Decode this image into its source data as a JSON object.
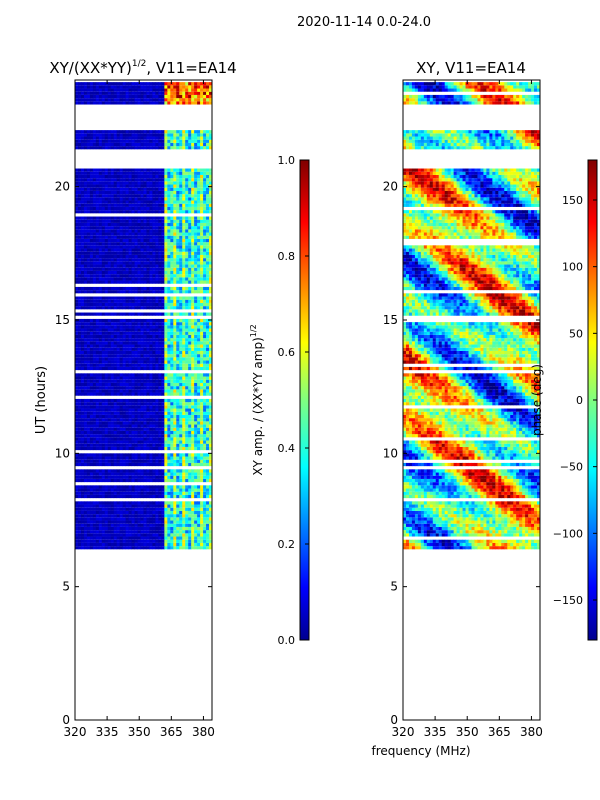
{
  "figure_title": "2020-11-14 0.0-24.0",
  "shared_xlabel": "frequency (MHz)",
  "chart_data": [
    {
      "type": "heatmap",
      "title_main": "XY/(XX*YY)",
      "title_sup": "1/2",
      "title_rest": ", V11=EA14",
      "ylabel": "UT (hours)",
      "xlabel": "frequency (MHz)",
      "xlim": [
        320,
        384
      ],
      "ylim": [
        0,
        24
      ],
      "xticks": [
        320,
        335,
        350,
        365,
        380
      ],
      "yticks": [
        0,
        5,
        10,
        15,
        20
      ],
      "colormap": "jet",
      "time_coverage": [
        6.4,
        23.9
      ],
      "bright_channel_band_mhz": [
        361,
        384
      ],
      "colorbar": {
        "label_main": "XY amp. / (XX*YY amp)",
        "label_sup": "1/2",
        "range": [
          0.0,
          1.0
        ],
        "ticks": [
          "0.0",
          "0.2",
          "0.4",
          "0.6",
          "0.8",
          "1.0"
        ]
      }
    },
    {
      "type": "heatmap",
      "title": "XY, V11=EA14",
      "xlim": [
        320,
        384
      ],
      "ylim": [
        0,
        24
      ],
      "xticks": [
        320,
        335,
        350,
        365,
        380
      ],
      "yticks": [
        0,
        5,
        10,
        15,
        20
      ],
      "colormap": "jet",
      "time_coverage": [
        6.4,
        23.9
      ],
      "colorbar": {
        "label": "phase (deg)",
        "range": [
          -180,
          180
        ],
        "ticks": [
          "−150",
          "−100",
          "−50",
          "0",
          "50",
          "100",
          "150"
        ]
      }
    }
  ],
  "colors": {
    "jet_dark_blue": "#00008f",
    "jet_blue": "#0000ff",
    "jet_cyan": "#00ffff",
    "jet_yellow": "#ffff00",
    "jet_red": "#ff0000",
    "jet_dark_red": "#800000"
  }
}
